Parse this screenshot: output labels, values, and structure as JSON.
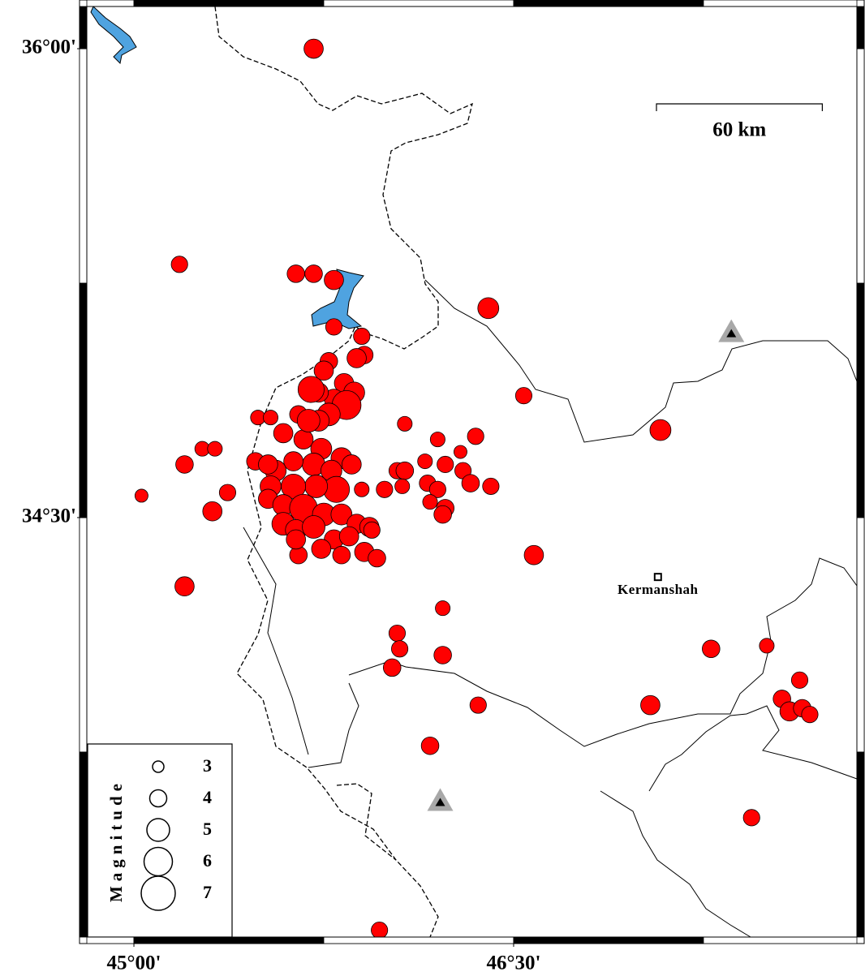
{
  "map": {
    "xlim": [
      44.814,
      47.856
    ],
    "ylim": [
      33.158,
      36.135
    ],
    "xticks": [
      {
        "value": 45,
        "label": "45°00'"
      },
      {
        "value": 46.5,
        "label": "46°30'"
      }
    ],
    "yticks": [
      {
        "value": 34.5,
        "label": "34°30'"
      },
      {
        "value": 36,
        "label": "36°00'"
      }
    ],
    "scale_bar": {
      "value": 60,
      "label": "60 km"
    },
    "city": {
      "name": "Kermanshah",
      "lon": 47.07,
      "lat": 34.31
    },
    "stations": [
      {
        "lon": 47.36,
        "lat": 35.09
      },
      {
        "lon": 46.21,
        "lat": 33.59
      }
    ],
    "events": {
      "color": "#ff0000",
      "lon": [
        45.71,
        45.18,
        45.64,
        45.71,
        45.79,
        45.79,
        46.4,
        46.54,
        47.08,
        45.03,
        45.2,
        45.27,
        45.32,
        45.37,
        45.31,
        45.2,
        46.58,
        46.22,
        46.04,
        46.05,
        46.22,
        46.02,
        46.36,
        46.17,
        47.04,
        47.28,
        47.5,
        47.63,
        47.56,
        47.59,
        47.64,
        47.67,
        47.44,
        45.97,
        46.07,
        46.35,
        46.2,
        46.29,
        46.15,
        46.23,
        46.3,
        46.33,
        46.16,
        46.2,
        46.41,
        46.23,
        46.17,
        46.22,
        45.99,
        46.04,
        46.07,
        46.06,
        45.9,
        45.9,
        45.91,
        45.88,
        45.77,
        45.75,
        45.83,
        45.87,
        45.79,
        45.73,
        45.7,
        45.84,
        45.77,
        45.65,
        45.73,
        45.49,
        45.54,
        45.59,
        45.67,
        45.74,
        45.82,
        45.71,
        45.63,
        45.56,
        45.48,
        45.86,
        45.78,
        45.8,
        45.72,
        45.63,
        45.54,
        45.53,
        45.59,
        45.67,
        45.75,
        45.82,
        45.88,
        45.93,
        45.59,
        45.64,
        45.71,
        45.79,
        45.85,
        45.91,
        45.96,
        45.82,
        45.74,
        45.65,
        45.64,
        45.53,
        45.69,
        45.94
      ],
      "lat": [
        36.0,
        35.31,
        35.28,
        35.28,
        35.26,
        35.11,
        35.17,
        34.89,
        34.78,
        34.57,
        34.67,
        34.72,
        34.72,
        34.58,
        34.52,
        34.28,
        34.38,
        34.21,
        34.13,
        34.08,
        34.06,
        34.02,
        33.9,
        33.77,
        33.9,
        34.08,
        34.09,
        33.98,
        33.92,
        33.88,
        33.89,
        33.87,
        33.54,
        33.18,
        34.8,
        34.76,
        34.75,
        34.71,
        34.68,
        34.67,
        34.65,
        34.61,
        34.61,
        34.59,
        34.6,
        34.53,
        34.55,
        34.51,
        34.59,
        34.65,
        34.65,
        34.6,
        34.59,
        35.08,
        35.02,
        35.01,
        35.0,
        34.97,
        34.93,
        34.9,
        34.88,
        34.9,
        34.91,
        34.86,
        34.83,
        34.83,
        34.81,
        34.82,
        34.82,
        34.77,
        34.75,
        34.72,
        34.69,
        34.67,
        34.68,
        34.65,
        34.68,
        34.67,
        34.65,
        34.59,
        34.6,
        34.6,
        34.6,
        34.56,
        34.54,
        34.53,
        34.51,
        34.51,
        34.48,
        34.47,
        34.48,
        34.46,
        34.47,
        34.43,
        34.44,
        34.39,
        34.37,
        34.38,
        34.4,
        34.38,
        34.43,
        34.67,
        34.81,
        34.46
      ],
      "magnitude": [
        4.4,
        3.9,
        4.1,
        4.1,
        4.4,
        3.9,
        4.7,
        3.9,
        4.7,
        3.3,
        4.1,
        3.6,
        3.6,
        3.9,
        4.4,
        4.4,
        4.4,
        3.6,
        3.9,
        3.9,
        4.1,
        4.1,
        3.9,
        4.1,
        4.4,
        4.1,
        3.6,
        3.9,
        4.1,
        4.4,
        4.1,
        3.9,
        3.9,
        3.9,
        3.6,
        3.9,
        3.6,
        3.3,
        3.6,
        3.9,
        3.9,
        4.1,
        3.9,
        3.9,
        3.9,
        4.1,
        3.6,
        4.1,
        3.9,
        3.9,
        4.1,
        3.6,
        3.6,
        3.9,
        4.1,
        4.4,
        4.1,
        4.4,
        4.4,
        4.7,
        4.4,
        4.4,
        5.6,
        6.1,
        5.0,
        4.1,
        4.7,
        3.6,
        3.6,
        4.4,
        4.4,
        4.7,
        4.7,
        5.0,
        4.4,
        4.7,
        4.1,
        4.4,
        4.7,
        5.6,
        5.0,
        5.3,
        4.7,
        4.4,
        4.7,
        5.9,
        5.0,
        4.7,
        4.4,
        4.4,
        5.0,
        4.7,
        5.0,
        4.4,
        4.4,
        4.4,
        4.1,
        4.1,
        4.4,
        4.1,
        4.4,
        4.4,
        5.0,
        3.9
      ]
    },
    "legend": {
      "title": "Magnitude",
      "sizes": [
        3,
        4,
        5,
        6,
        7
      ]
    }
  }
}
